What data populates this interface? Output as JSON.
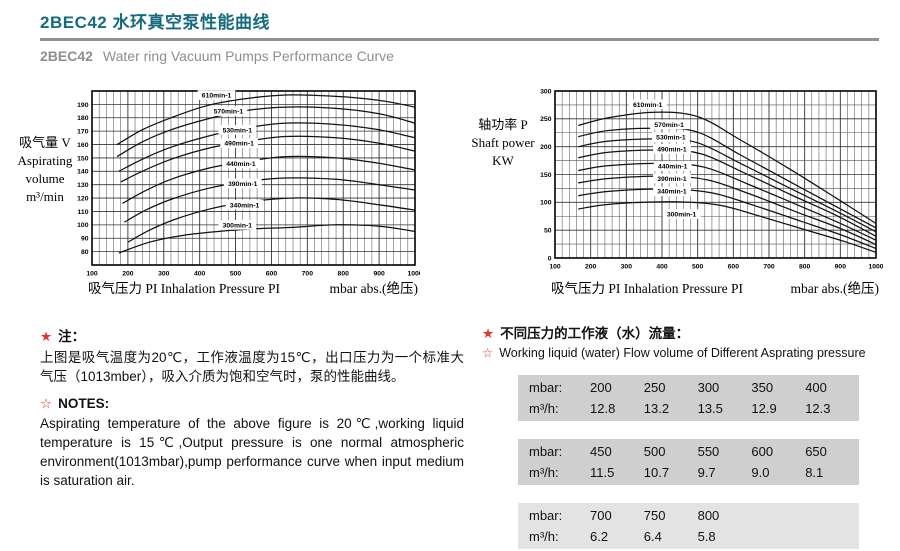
{
  "page": {
    "title": "2BEC42 水环真空泵性能曲线",
    "subtitle_model": "2BEC42",
    "subtitle_text": "Water ring Vacuum Pumps Performance Curve"
  },
  "colors": {
    "accent_teal": "#156b80",
    "subtitle_gray": "#8e8e8e",
    "rule_gray": "#8e9296",
    "star_red": "#e5352b",
    "table_dark": "#cfcfcf",
    "table_light": "#e3e3e3",
    "curve_black": "#111111",
    "grid_gray": "#555555"
  },
  "chart_data": [
    {
      "type": "line",
      "title": "",
      "ylabel_lines": [
        "吸气量 V",
        "Aspirating",
        "volume",
        "m³/min"
      ],
      "xlabel": "吸气压力 PI Inhalation Pressure PI",
      "x_unit": "mbar abs.(绝压)",
      "xlim": [
        100,
        1000
      ],
      "ylim": [
        70,
        200
      ],
      "x_major_ticks": [
        100,
        200,
        300,
        400,
        500,
        600,
        700,
        800,
        900,
        1000
      ],
      "x_minor_step": 20,
      "y_major_ticks": [
        80,
        90,
        100,
        110,
        120,
        130,
        140,
        150,
        160,
        170,
        180,
        190
      ],
      "y_minor_step": 10,
      "grid": true,
      "legend_position": "on-curve",
      "series": [
        {
          "name": "610min-1",
          "label_at": [
            447,
            197
          ],
          "points": [
            [
              170,
              160
            ],
            [
              240,
              171
            ],
            [
              320,
              180
            ],
            [
              420,
              189
            ],
            [
              520,
              194
            ],
            [
              640,
              197
            ],
            [
              780,
              196
            ],
            [
              900,
              193
            ],
            [
              1000,
              188
            ]
          ]
        },
        {
          "name": "570min-1",
          "label_at": [
            480,
            185
          ],
          "points": [
            [
              170,
              151
            ],
            [
              240,
              162
            ],
            [
              320,
              171
            ],
            [
              420,
              179
            ],
            [
              520,
              185
            ],
            [
              640,
              188
            ],
            [
              780,
              187
            ],
            [
              900,
              183
            ],
            [
              1000,
              176
            ]
          ]
        },
        {
          "name": "530min-1",
          "label_at": [
            505,
            171
          ],
          "points": [
            [
              175,
              140
            ],
            [
              240,
              149
            ],
            [
              320,
              158
            ],
            [
              420,
              166
            ],
            [
              520,
              172
            ],
            [
              640,
              176
            ],
            [
              780,
              175
            ],
            [
              900,
              171
            ],
            [
              1000,
              165
            ]
          ]
        },
        {
          "name": "490min-1",
          "label_at": [
            510,
            161
          ],
          "points": [
            [
              180,
              132
            ],
            [
              240,
              140
            ],
            [
              320,
              149
            ],
            [
              420,
              157
            ],
            [
              520,
              162
            ],
            [
              640,
              166
            ],
            [
              780,
              165
            ],
            [
              900,
              161
            ],
            [
              1000,
              155
            ]
          ]
        },
        {
          "name": "440min-1",
          "label_at": [
            515,
            146
          ],
          "points": [
            [
              185,
              116
            ],
            [
              245,
              125
            ],
            [
              320,
              134
            ],
            [
              420,
              142
            ],
            [
              520,
              147
            ],
            [
              640,
              151
            ],
            [
              780,
              150
            ],
            [
              900,
              146
            ],
            [
              1000,
              141
            ]
          ]
        },
        {
          "name": "390min-1",
          "label_at": [
            520,
            131
          ],
          "points": [
            [
              190,
              102
            ],
            [
              250,
              111
            ],
            [
              320,
              119
            ],
            [
              420,
              127
            ],
            [
              520,
              132
            ],
            [
              640,
              135
            ],
            [
              780,
              134
            ],
            [
              900,
              130
            ],
            [
              1000,
              126
            ]
          ]
        },
        {
          "name": "340min-1",
          "label_at": [
            525,
            115
          ],
          "points": [
            [
              200,
              87
            ],
            [
              260,
              96
            ],
            [
              330,
              104
            ],
            [
              430,
              112
            ],
            [
              530,
              117
            ],
            [
              650,
              120
            ],
            [
              780,
              119
            ],
            [
              900,
              115
            ],
            [
              1000,
              111
            ]
          ]
        },
        {
          "name": "300min-1",
          "label_at": [
            505,
            100
          ],
          "points": [
            [
              175,
              79
            ],
            [
              260,
              87
            ],
            [
              350,
              92
            ],
            [
              450,
              95
            ],
            [
              550,
              97
            ],
            [
              650,
              98
            ],
            [
              780,
              100
            ],
            [
              900,
              99
            ],
            [
              1000,
              95
            ]
          ]
        }
      ]
    },
    {
      "type": "line",
      "title": "",
      "ylabel_lines": [
        "轴功率 P",
        "Shaft power",
        "KW"
      ],
      "xlabel": "吸气压力 PI Inhalation Pressure PI",
      "x_unit": "mbar abs.(绝压)",
      "xlim": [
        100,
        1000
      ],
      "ylim": [
        0,
        300
      ],
      "x_major_ticks": [
        100,
        200,
        300,
        400,
        500,
        600,
        700,
        800,
        900,
        1000
      ],
      "x_minor_step": 20,
      "y_major_ticks": [
        0,
        50,
        100,
        150,
        200,
        250,
        300
      ],
      "y_minor_step": 25,
      "grid": true,
      "legend_position": "on-curve",
      "series": [
        {
          "name": "610min-1",
          "label_at": [
            360,
            276
          ],
          "points": [
            [
              165,
              238
            ],
            [
              250,
              252
            ],
            [
              380,
              262
            ],
            [
              500,
              254
            ],
            [
              620,
              212
            ],
            [
              750,
              163
            ],
            [
              880,
              111
            ],
            [
              1000,
              62
            ]
          ]
        },
        {
          "name": "570min-1",
          "label_at": [
            420,
            240
          ],
          "points": [
            [
              165,
              218
            ],
            [
              250,
              229
            ],
            [
              390,
              233
            ],
            [
              500,
              226
            ],
            [
              620,
              185
            ],
            [
              750,
              140
            ],
            [
              880,
              95
            ],
            [
              1000,
              54
            ]
          ]
        },
        {
          "name": "530min-1",
          "label_at": [
            425,
            217
          ],
          "points": [
            [
              165,
              200
            ],
            [
              250,
              210
            ],
            [
              395,
              214
            ],
            [
              500,
              207
            ],
            [
              620,
              170
            ],
            [
              750,
              128
            ],
            [
              880,
              87
            ],
            [
              1000,
              47
            ]
          ]
        },
        {
          "name": "490min-1",
          "label_at": [
            428,
            196
          ],
          "points": [
            [
              165,
              180
            ],
            [
              250,
              190
            ],
            [
              400,
              194
            ],
            [
              510,
              187
            ],
            [
              630,
              153
            ],
            [
              760,
              114
            ],
            [
              890,
              76
            ],
            [
              1000,
              39
            ]
          ]
        },
        {
          "name": "440min-1",
          "label_at": [
            430,
            165
          ],
          "points": [
            [
              165,
              157
            ],
            [
              250,
              166
            ],
            [
              405,
              170
            ],
            [
              520,
              163
            ],
            [
              640,
              133
            ],
            [
              770,
              98
            ],
            [
              890,
              65
            ],
            [
              1000,
              32
            ]
          ]
        },
        {
          "name": "390min-1",
          "label_at": [
            428,
            143
          ],
          "points": [
            [
              165,
              135
            ],
            [
              255,
              143
            ],
            [
              410,
              147
            ],
            [
              530,
              140
            ],
            [
              650,
              114
            ],
            [
              780,
              82
            ],
            [
              900,
              53
            ],
            [
              1000,
              24
            ]
          ]
        },
        {
          "name": "340min-1",
          "label_at": [
            428,
            120
          ],
          "points": [
            [
              165,
              112
            ],
            [
              255,
              120
            ],
            [
              415,
              124
            ],
            [
              540,
              117
            ],
            [
              660,
              94
            ],
            [
              790,
              66
            ],
            [
              900,
              42
            ],
            [
              1000,
              17
            ]
          ]
        },
        {
          "name": "300min-1",
          "label_at": [
            455,
            79
          ],
          "points": [
            [
              165,
              88
            ],
            [
              260,
              97
            ],
            [
              430,
              101
            ],
            [
              560,
              95
            ],
            [
              680,
              74
            ],
            [
              800,
              51
            ],
            [
              910,
              30
            ],
            [
              1000,
              10
            ]
          ]
        }
      ]
    }
  ],
  "notes_left": {
    "star": "★",
    "zhu_label": "注：",
    "body_cn": "上图是吸气温度为20℃，工作液温度为15℃，出口压力为一个标准大气压（1013mber），吸入介质为饱和空气时，泵的性能曲线。",
    "star_outline": "☆",
    "notes_label": "NOTES:",
    "body_en": "Aspirating temperature of the above figure is 20℃,working liquid temperature is 15℃,Output pressure is one normal atmospheric environment(1013mbar),pump performance curve when input medium is saturation air."
  },
  "notes_right": {
    "star": "★",
    "heading_cn": "不同压力的工作液（水）流量：",
    "star_outline": "☆",
    "heading_en": "Working liquid (water) Flow volume of Different Asprating pressure"
  },
  "flow_tables": [
    {
      "row_labels": [
        "mbar:",
        "m³/h:"
      ],
      "pressures": [
        "200",
        "250",
        "300",
        "350",
        "400"
      ],
      "flows": [
        "12.8",
        "13.2",
        "13.5",
        "12.9",
        "12.3"
      ]
    },
    {
      "row_labels": [
        "mbar:",
        "m³/h:"
      ],
      "pressures": [
        "450",
        "500",
        "550",
        "600",
        "650"
      ],
      "flows": [
        "11.5",
        "10.7",
        "9.7",
        "9.0",
        "8.1"
      ]
    },
    {
      "row_labels": [
        "mbar:",
        "m³/h:"
      ],
      "pressures": [
        "700",
        "750",
        "800"
      ],
      "flows": [
        "6.2",
        "6.4",
        "5.8"
      ]
    }
  ]
}
